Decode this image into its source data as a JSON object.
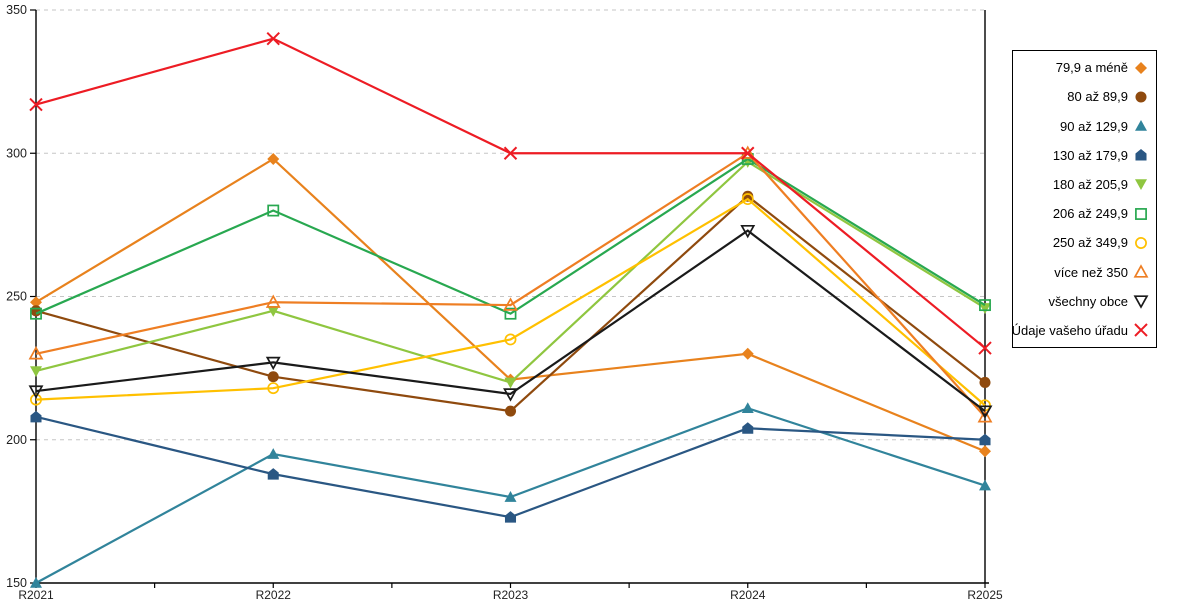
{
  "chart_data": {
    "type": "line",
    "title": "",
    "xlabel": "",
    "ylabel": "",
    "categories": [
      "R2021",
      "R2022",
      "R2023",
      "R2024",
      "R2025"
    ],
    "series": [
      {
        "name": "79,9 a méně",
        "marker": "diamond",
        "color": "#E8821D",
        "values": [
          248,
          298,
          221,
          230,
          196
        ]
      },
      {
        "name": "80 až 89,9",
        "marker": "circle",
        "color": "#8F4A0E",
        "values": [
          245,
          222,
          210,
          285,
          220
        ]
      },
      {
        "name": "90 až 129,9",
        "marker": "triangle-up",
        "color": "#31849B",
        "values": [
          150,
          195,
          180,
          211,
          184
        ]
      },
      {
        "name": "130 až 179,9",
        "marker": "pentagon",
        "color": "#2A5783",
        "values": [
          208,
          188,
          173,
          204,
          200
        ]
      },
      {
        "name": "180 až 205,9",
        "marker": "triangle-down",
        "color": "#8FC640",
        "values": [
          224,
          245,
          220,
          297,
          246
        ]
      },
      {
        "name": "206 až 249,9",
        "marker": "square-open",
        "color": "#28A850",
        "values": [
          244,
          280,
          244,
          298,
          247
        ]
      },
      {
        "name": "250 až 349,9",
        "marker": "circle-open",
        "color": "#FFC000",
        "values": [
          214,
          218,
          235,
          284,
          212
        ]
      },
      {
        "name": "více než 350",
        "marker": "triangle-up-open",
        "color": "#EE7E23",
        "values": [
          230,
          248,
          247,
          300,
          208
        ]
      },
      {
        "name": "všechny obce",
        "marker": "triangle-down-open",
        "color": "#1A1A1A",
        "values": [
          217,
          227,
          216,
          273,
          210
        ]
      },
      {
        "name": "Údaje vašeho úřadu",
        "marker": "x",
        "color": "#ED1C24",
        "values": [
          317,
          340,
          300,
          300,
          232
        ]
      }
    ],
    "ylim": [
      150,
      350
    ],
    "yticks": [
      150,
      200,
      250,
      300,
      350
    ],
    "grid": "horizontal-dashed",
    "gridline_color": "#C6C6C6",
    "axis_color": "#000000",
    "tick_label_color": "#1F1F1F",
    "legend_position": "right"
  }
}
